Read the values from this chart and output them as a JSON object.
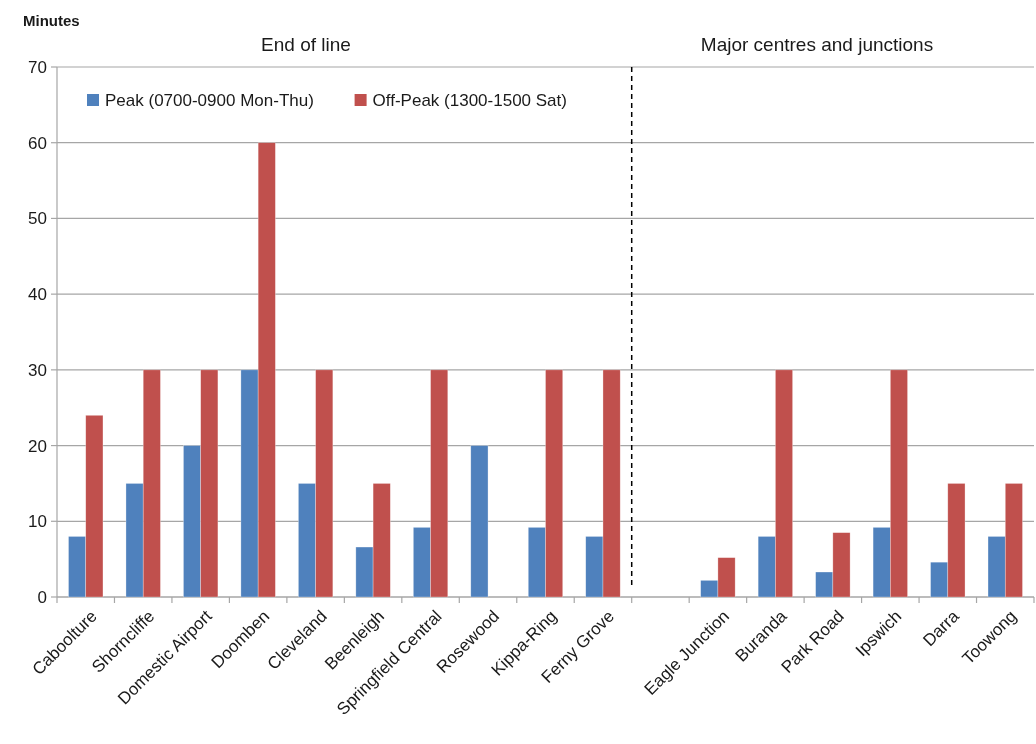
{
  "chart_data": {
    "type": "bar",
    "ylabel": "Minutes",
    "annotations": [
      "End of line",
      "Major centres and junctions"
    ],
    "categories": [
      "Caboolture",
      "Shorncliffe",
      "Domestic Airport",
      "Doomben",
      "Cleveland",
      "Beenleigh",
      "Springfield Central",
      "Rosewood",
      "Kippa-Ring",
      "Ferny Grove",
      null,
      "Eagle Junction",
      "Buranda",
      "Park Road",
      "Ipswich",
      "Darra",
      "Toowong"
    ],
    "series": [
      {
        "name": "Peak (0700-0900 Mon-Thu)",
        "color": "#4f81bd",
        "values": [
          8,
          15,
          20,
          30,
          15,
          6.6,
          9.2,
          20,
          9.2,
          8,
          null,
          2.2,
          8,
          3.3,
          9.2,
          4.6,
          8
        ]
      },
      {
        "name": "Off-Peak (1300-1500 Sat)",
        "color": "#c0504d",
        "values": [
          24,
          30,
          30,
          60,
          30,
          15,
          30,
          null,
          30,
          30,
          null,
          5.2,
          30,
          8.5,
          30,
          15,
          15
        ]
      }
    ],
    "ylim": [
      0,
      70
    ],
    "yticks": [
      0,
      10,
      20,
      30,
      40,
      50,
      60,
      70
    ],
    "grid": "y",
    "legend": "top left"
  }
}
